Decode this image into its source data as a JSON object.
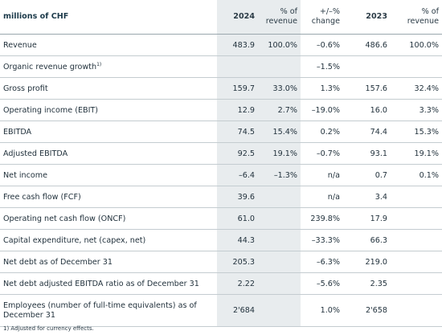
{
  "table": {
    "header": {
      "label": "millions of CHF",
      "y2024": "2024",
      "pct2024": [
        "% of",
        "revenue"
      ],
      "change": [
        "+/–%",
        "change"
      ],
      "y2023": "2023",
      "pct2023": [
        "% of",
        "revenue"
      ]
    },
    "rows": [
      {
        "label": "Revenue",
        "v2024": "483.9",
        "p2024": "100.0%",
        "chg": "–0.6%",
        "v2023": "486.6",
        "p2023": "100.0%"
      },
      {
        "label": "Organic revenue growth",
        "sup": "1)",
        "v2024": "",
        "p2024": "",
        "chg": "–1.5%",
        "v2023": "",
        "p2023": ""
      },
      {
        "label": "Gross profit",
        "v2024": "159.7",
        "p2024": "33.0%",
        "chg": "1.3%",
        "v2023": "157.6",
        "p2023": "32.4%"
      },
      {
        "label": "Operating income (EBIT)",
        "v2024": "12.9",
        "p2024": "2.7%",
        "chg": "–19.0%",
        "v2023": "16.0",
        "p2023": "3.3%"
      },
      {
        "label": "EBITDA",
        "v2024": "74.5",
        "p2024": "15.4%",
        "chg": "0.2%",
        "v2023": "74.4",
        "p2023": "15.3%"
      },
      {
        "label": "Adjusted EBITDA",
        "v2024": "92.5",
        "p2024": "19.1%",
        "chg": "–0.7%",
        "v2023": "93.1",
        "p2023": "19.1%"
      },
      {
        "label": "Net income",
        "v2024": "–6.4",
        "p2024": "–1.3%",
        "chg": "n/a",
        "v2023": "0.7",
        "p2023": "0.1%"
      },
      {
        "label": "Free cash flow (FCF)",
        "v2024": "39.6",
        "p2024": "",
        "chg": "n/a",
        "v2023": "3.4",
        "p2023": ""
      },
      {
        "label": "Operating net cash flow (ONCF)",
        "v2024": "61.0",
        "p2024": "",
        "chg": "239.8%",
        "v2023": "17.9",
        "p2023": ""
      },
      {
        "label": "Capital expenditure, net (capex, net)",
        "v2024": "44.3",
        "p2024": "",
        "chg": "–33.3%",
        "v2023": "66.3",
        "p2023": ""
      },
      {
        "label": "Net debt as of December 31",
        "v2024": "205.3",
        "p2024": "",
        "chg": "–6.3%",
        "v2023": "219.0",
        "p2023": ""
      },
      {
        "label": "Net debt adjusted EBITDA ratio as of December 31",
        "v2024": "2.22",
        "p2024": "",
        "chg": "–5.6%",
        "v2023": "2.35",
        "p2023": ""
      },
      {
        "label": "Employees (number of full-time equivalents) as of December 31",
        "v2024": "2'684",
        "p2024": "",
        "chg": "1.0%",
        "v2023": "2'658",
        "p2023": ""
      }
    ]
  },
  "footnote": "1)  Adjusted for currency effects."
}
